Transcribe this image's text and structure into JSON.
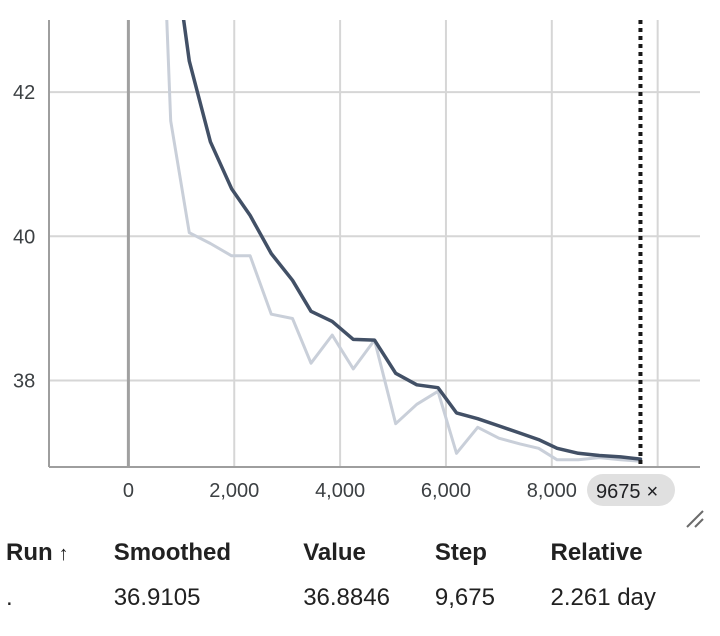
{
  "chart_data": {
    "type": "line",
    "xlim": [
      -1500,
      10800
    ],
    "ylim": [
      36.8,
      43.0
    ],
    "x_ticks": [
      0,
      2000,
      4000,
      6000,
      8000
    ],
    "x_tick_labels": [
      "0",
      "2,000",
      "4,000",
      "6,000",
      "8,000"
    ],
    "y_ticks": [
      38,
      40,
      42
    ],
    "y_tick_labels": [
      "38",
      "40",
      "42"
    ],
    "grid": true,
    "series": [
      {
        "role": "raw",
        "color": "#c9cfd9",
        "x": [
          700,
          800,
          1150,
          1550,
          1950,
          2300,
          2700,
          3100,
          3450,
          3850,
          4250,
          4650,
          5050,
          5450,
          5850,
          6200,
          6600,
          7000,
          7400,
          7750,
          8100,
          8500,
          8900,
          9300,
          9675
        ],
        "y": [
          43.5,
          41.6,
          40.05,
          39.9,
          39.73,
          39.73,
          38.92,
          38.86,
          38.24,
          38.63,
          38.16,
          38.56,
          37.4,
          37.67,
          37.85,
          36.99,
          37.35,
          37.2,
          37.12,
          37.06,
          36.9,
          36.9,
          36.93,
          36.9,
          36.88
        ]
      },
      {
        "role": "smoothed",
        "color": "#425066",
        "x": [
          950,
          1150,
          1550,
          1950,
          2300,
          2700,
          3100,
          3450,
          3850,
          4250,
          4650,
          5050,
          5450,
          5850,
          6200,
          6600,
          7000,
          7400,
          7750,
          8100,
          8500,
          8900,
          9300,
          9675
        ],
        "y": [
          43.5,
          42.43,
          41.31,
          40.66,
          40.29,
          39.76,
          39.39,
          38.96,
          38.82,
          38.57,
          38.56,
          38.1,
          37.94,
          37.9,
          37.55,
          37.47,
          37.37,
          37.27,
          37.18,
          37.06,
          36.99,
          36.96,
          36.94,
          36.91
        ]
      }
    ],
    "cursor_step": 9675,
    "cursor_label": "9675",
    "cursor_close": "×"
  },
  "tooltip": {
    "headers": {
      "run": "Run",
      "sort_arrow": "↑",
      "smoothed": "Smoothed",
      "value": "Value",
      "step": "Step",
      "relative": "Relative"
    },
    "row": {
      "run": ".",
      "smoothed": "36.9105",
      "value": "36.8846",
      "step": "9,675",
      "relative": "2.261 day"
    }
  },
  "colors": {
    "grid": "#d6d6d6",
    "axis": "#9e9e9e",
    "zero_line": "#a0a0a0",
    "cursor": "#1a1a1a"
  },
  "icons": {
    "resize": "resize-handle-icon"
  }
}
